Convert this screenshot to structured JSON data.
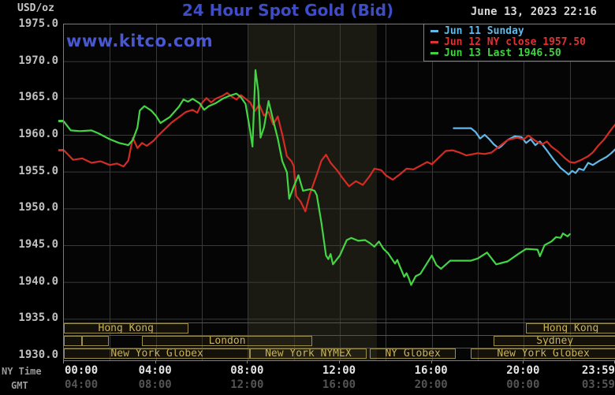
{
  "header": {
    "units_label": "USD/oz",
    "title": "24 Hour Spot Gold (Bid)",
    "datetime": "June 13, 2023 22:16",
    "watermark": "www.kitco.com"
  },
  "colors": {
    "title_blue": "#3d4dc6",
    "watermark_blue": "#4a58d0",
    "grid": "#3a3a3a",
    "frame": "#7a7a7a",
    "nymex_band": "#1a1a12",
    "session_border": "#9c8e46",
    "session_text": "#ccb24e",
    "cyan_line": "#62b8e8",
    "red_line": "#d42c24",
    "green_line": "#44d544"
  },
  "legend": [
    {
      "label": "Jun 11 Sunday",
      "color": "#62b8e8"
    },
    {
      "label": "Jun 12 NY close 1957.50",
      "color": "#e03232"
    },
    {
      "label": "Jun 13 Last 1946.50",
      "color": "#3ed43e"
    }
  ],
  "y_axis": {
    "tick_labels": [
      "1975.0",
      "1970.0",
      "1965.0",
      "1960.0",
      "1955.0",
      "1950.0",
      "1945.0",
      "1940.0",
      "1935.0",
      "1930.0"
    ],
    "tick_values": [
      1975,
      1970,
      1965,
      1960,
      1955,
      1950,
      1945,
      1940,
      1935,
      1930
    ]
  },
  "x_axis": {
    "ny_row_label": "NY Time",
    "gmt_row_label": "GMT",
    "hours": [
      0,
      4,
      8,
      12,
      16,
      20,
      24
    ],
    "ny_tick_labels": [
      "00:00",
      "04:00",
      "08:00",
      "12:00",
      "16:00",
      "20:00",
      "23:59"
    ],
    "gmt_tick_labels": [
      "04:00",
      "08:00",
      "12:00",
      "16:00",
      "20:00",
      "00:00",
      "03:59"
    ]
  },
  "axis_markers": [
    {
      "color": "#44d544",
      "value": 1961.8
    },
    {
      "color": "#d42c24",
      "value": 1957.9
    }
  ],
  "sessions": {
    "rows": [
      {
        "boxes": [
          {
            "label": "Hong Kong",
            "start": 0.0,
            "end": 5.4
          },
          {
            "label": "Hong Kong",
            "start": 20.1,
            "end": 24.0
          }
        ]
      },
      {
        "boxes": [
          {
            "label": "",
            "start": 0.0,
            "end": 0.8
          },
          {
            "label": "",
            "start": 0.8,
            "end": 1.95
          },
          {
            "label": "London",
            "start": 3.4,
            "end": 10.8
          },
          {
            "label": "Sydney",
            "start": 18.7,
            "end": 24.0
          }
        ]
      },
      {
        "boxes": [
          {
            "label": "New York Globex",
            "start": 0.0,
            "end": 8.1
          },
          {
            "label": "New York NYMEX",
            "start": 8.1,
            "end": 13.15
          },
          {
            "label": "NY Globex",
            "start": 13.3,
            "end": 17.05
          },
          {
            "label": "New York Globex",
            "start": 17.7,
            "end": 24.0
          }
        ]
      }
    ]
  },
  "chart_data": {
    "type": "line",
    "title": "24 Hour Spot Gold (Bid)",
    "xlabel": "NY Time (hours)",
    "ylabel": "USD/oz",
    "xlim": [
      0,
      24
    ],
    "ylim": [
      1930,
      1975
    ],
    "grid": {
      "x_hours": [
        2,
        4,
        6,
        8,
        10,
        12,
        14,
        16,
        18,
        20,
        22
      ],
      "y_values": [
        1935,
        1940,
        1945,
        1950,
        1955,
        1960,
        1965,
        1970
      ]
    },
    "highlight_band_hours": [
      8.0,
      13.6
    ],
    "legend_position": "top-right",
    "series": [
      {
        "name": "Jun 11 Sunday",
        "color": "#62b8e8",
        "points": [
          [
            16.95,
            1960.9
          ],
          [
            17.7,
            1960.9
          ],
          [
            17.9,
            1960.4
          ],
          [
            18.1,
            1959.5
          ],
          [
            18.3,
            1960.0
          ],
          [
            18.5,
            1959.4
          ],
          [
            18.7,
            1958.7
          ],
          [
            18.9,
            1958.2
          ],
          [
            19.0,
            1958.4
          ],
          [
            19.3,
            1959.3
          ],
          [
            19.6,
            1959.8
          ],
          [
            19.9,
            1959.7
          ],
          [
            20.1,
            1958.9
          ],
          [
            20.3,
            1959.4
          ],
          [
            20.5,
            1958.6
          ],
          [
            20.7,
            1959.1
          ],
          [
            21.0,
            1957.9
          ],
          [
            21.3,
            1956.6
          ],
          [
            21.6,
            1955.5
          ],
          [
            21.8,
            1955.0
          ],
          [
            21.95,
            1954.6
          ],
          [
            22.1,
            1955.1
          ],
          [
            22.25,
            1954.8
          ],
          [
            22.4,
            1955.4
          ],
          [
            22.6,
            1955.2
          ],
          [
            22.8,
            1956.2
          ],
          [
            23.0,
            1955.9
          ],
          [
            23.3,
            1956.5
          ],
          [
            23.6,
            1957.0
          ],
          [
            23.8,
            1957.5
          ],
          [
            24.0,
            1958.1
          ]
        ]
      },
      {
        "name": "Jun 12 NY close 1957.50",
        "color": "#d42c24",
        "points": [
          [
            0.0,
            1957.9
          ],
          [
            0.4,
            1956.6
          ],
          [
            0.8,
            1956.8
          ],
          [
            1.2,
            1956.2
          ],
          [
            1.6,
            1956.4
          ],
          [
            2.0,
            1955.9
          ],
          [
            2.3,
            1956.1
          ],
          [
            2.6,
            1955.7
          ],
          [
            2.8,
            1956.5
          ],
          [
            3.0,
            1959.6
          ],
          [
            3.2,
            1958.2
          ],
          [
            3.4,
            1958.9
          ],
          [
            3.6,
            1958.5
          ],
          [
            3.9,
            1959.2
          ],
          [
            4.1,
            1959.9
          ],
          [
            4.4,
            1960.8
          ],
          [
            4.7,
            1961.7
          ],
          [
            5.0,
            1962.4
          ],
          [
            5.3,
            1963.1
          ],
          [
            5.6,
            1963.4
          ],
          [
            5.8,
            1963.0
          ],
          [
            6.0,
            1964.3
          ],
          [
            6.2,
            1965.0
          ],
          [
            6.4,
            1964.4
          ],
          [
            6.6,
            1964.9
          ],
          [
            6.9,
            1965.3
          ],
          [
            7.1,
            1965.7
          ],
          [
            7.3,
            1965.2
          ],
          [
            7.5,
            1964.8
          ],
          [
            7.7,
            1965.4
          ],
          [
            7.9,
            1964.9
          ],
          [
            8.1,
            1964.4
          ],
          [
            8.3,
            1963.2
          ],
          [
            8.5,
            1964.1
          ],
          [
            8.7,
            1962.6
          ],
          [
            8.9,
            1963.1
          ],
          [
            9.1,
            1961.4
          ],
          [
            9.3,
            1962.5
          ],
          [
            9.5,
            1960.0
          ],
          [
            9.7,
            1957.1
          ],
          [
            9.9,
            1956.4
          ],
          [
            10.0,
            1955.7
          ],
          [
            10.1,
            1951.7
          ],
          [
            10.3,
            1950.9
          ],
          [
            10.5,
            1949.6
          ],
          [
            10.7,
            1952.0
          ],
          [
            11.0,
            1954.6
          ],
          [
            11.2,
            1956.5
          ],
          [
            11.4,
            1957.3
          ],
          [
            11.6,
            1956.2
          ],
          [
            11.9,
            1955.1
          ],
          [
            12.1,
            1954.2
          ],
          [
            12.4,
            1953.0
          ],
          [
            12.7,
            1953.7
          ],
          [
            13.0,
            1953.2
          ],
          [
            13.3,
            1954.4
          ],
          [
            13.5,
            1955.4
          ],
          [
            13.8,
            1955.2
          ],
          [
            14.0,
            1954.5
          ],
          [
            14.3,
            1953.9
          ],
          [
            14.6,
            1954.6
          ],
          [
            14.9,
            1955.4
          ],
          [
            15.2,
            1955.3
          ],
          [
            15.5,
            1955.8
          ],
          [
            15.8,
            1956.3
          ],
          [
            16.0,
            1956.0
          ],
          [
            16.3,
            1956.9
          ],
          [
            16.6,
            1957.8
          ],
          [
            16.9,
            1957.9
          ],
          [
            17.2,
            1957.6
          ],
          [
            17.5,
            1957.2
          ],
          [
            18.0,
            1957.5
          ],
          [
            18.3,
            1957.4
          ],
          [
            18.6,
            1957.6
          ],
          [
            19.0,
            1958.6
          ],
          [
            19.3,
            1959.3
          ],
          [
            19.7,
            1959.6
          ],
          [
            20.0,
            1959.4
          ],
          [
            20.2,
            1959.9
          ],
          [
            20.5,
            1959.2
          ],
          [
            20.8,
            1958.7
          ],
          [
            21.0,
            1959.1
          ],
          [
            21.2,
            1958.4
          ],
          [
            21.5,
            1957.7
          ],
          [
            21.8,
            1956.8
          ],
          [
            22.0,
            1956.3
          ],
          [
            22.2,
            1956.2
          ],
          [
            22.5,
            1956.6
          ],
          [
            22.8,
            1957.1
          ],
          [
            23.0,
            1957.6
          ],
          [
            23.2,
            1958.4
          ],
          [
            23.5,
            1959.4
          ],
          [
            23.7,
            1960.3
          ],
          [
            23.85,
            1960.9
          ],
          [
            24.0,
            1961.5
          ]
        ]
      },
      {
        "name": "Jun 13 Last 1946.50",
        "color": "#44d544",
        "points": [
          [
            0.0,
            1961.8
          ],
          [
            0.3,
            1960.6
          ],
          [
            0.7,
            1960.5
          ],
          [
            1.2,
            1960.6
          ],
          [
            1.5,
            1960.2
          ],
          [
            2.0,
            1959.4
          ],
          [
            2.4,
            1958.9
          ],
          [
            2.8,
            1958.6
          ],
          [
            3.0,
            1959.3
          ],
          [
            3.2,
            1961.0
          ],
          [
            3.3,
            1963.3
          ],
          [
            3.5,
            1963.9
          ],
          [
            3.8,
            1963.3
          ],
          [
            4.0,
            1962.6
          ],
          [
            4.2,
            1961.6
          ],
          [
            4.4,
            1962.0
          ],
          [
            4.6,
            1962.4
          ],
          [
            5.0,
            1963.8
          ],
          [
            5.2,
            1964.8
          ],
          [
            5.4,
            1964.5
          ],
          [
            5.6,
            1964.9
          ],
          [
            5.9,
            1964.3
          ],
          [
            6.1,
            1963.4
          ],
          [
            6.3,
            1963.9
          ],
          [
            6.6,
            1964.3
          ],
          [
            6.9,
            1964.9
          ],
          [
            7.2,
            1965.3
          ],
          [
            7.5,
            1965.6
          ],
          [
            7.7,
            1965.1
          ],
          [
            7.9,
            1964.2
          ],
          [
            8.1,
            1960.5
          ],
          [
            8.2,
            1958.4
          ],
          [
            8.33,
            1968.8
          ],
          [
            8.45,
            1966.0
          ],
          [
            8.55,
            1959.6
          ],
          [
            8.7,
            1961.0
          ],
          [
            8.9,
            1964.6
          ],
          [
            9.1,
            1962.0
          ],
          [
            9.3,
            1959.5
          ],
          [
            9.5,
            1956.4
          ],
          [
            9.7,
            1954.9
          ],
          [
            9.8,
            1951.3
          ],
          [
            10.0,
            1953.0
          ],
          [
            10.2,
            1954.5
          ],
          [
            10.4,
            1952.4
          ],
          [
            10.7,
            1952.6
          ],
          [
            10.9,
            1952.4
          ],
          [
            11.0,
            1951.8
          ],
          [
            11.2,
            1948.0
          ],
          [
            11.4,
            1943.6
          ],
          [
            11.5,
            1943.1
          ],
          [
            11.6,
            1943.8
          ],
          [
            11.7,
            1942.4
          ],
          [
            12.0,
            1943.6
          ],
          [
            12.3,
            1945.7
          ],
          [
            12.5,
            1946.0
          ],
          [
            12.8,
            1945.6
          ],
          [
            13.1,
            1945.7
          ],
          [
            13.3,
            1945.3
          ],
          [
            13.5,
            1944.8
          ],
          [
            13.7,
            1945.5
          ],
          [
            13.9,
            1944.5
          ],
          [
            14.1,
            1943.9
          ],
          [
            14.4,
            1942.5
          ],
          [
            14.5,
            1943.0
          ],
          [
            14.6,
            1942.2
          ],
          [
            14.8,
            1940.7
          ],
          [
            14.9,
            1941.2
          ],
          [
            15.0,
            1940.5
          ],
          [
            15.1,
            1939.6
          ],
          [
            15.3,
            1940.8
          ],
          [
            15.5,
            1941.1
          ],
          [
            16.0,
            1943.6
          ],
          [
            16.2,
            1942.3
          ],
          [
            16.4,
            1941.8
          ],
          [
            16.8,
            1942.9
          ],
          [
            17.7,
            1942.9
          ],
          [
            18.0,
            1943.2
          ],
          [
            18.4,
            1944.0
          ],
          [
            18.8,
            1942.4
          ],
          [
            19.3,
            1942.8
          ],
          [
            19.8,
            1943.9
          ],
          [
            20.1,
            1944.5
          ],
          [
            20.6,
            1944.4
          ],
          [
            20.7,
            1943.5
          ],
          [
            20.9,
            1945.0
          ],
          [
            21.2,
            1945.5
          ],
          [
            21.4,
            1946.1
          ],
          [
            21.6,
            1946.0
          ],
          [
            21.7,
            1946.6
          ],
          [
            21.9,
            1946.2
          ],
          [
            22.0,
            1946.5
          ]
        ]
      }
    ]
  }
}
